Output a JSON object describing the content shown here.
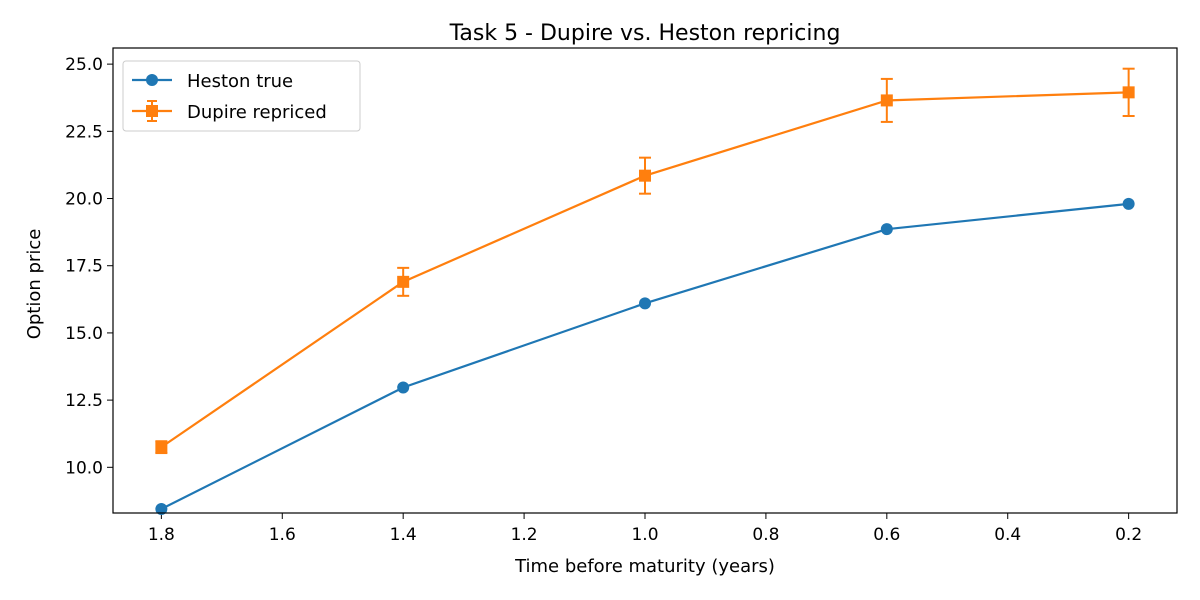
{
  "chart_data": {
    "type": "line",
    "title": "Task 5 - Dupire vs. Heston repricing",
    "xlabel": "Time before maturity (years)",
    "ylabel": "Option price",
    "x_reversed": true,
    "xlim": [
      1.88,
      0.12
    ],
    "ylim": [
      8.3,
      25.6
    ],
    "x_ticks": [
      1.8,
      1.6,
      1.4,
      1.2,
      1.0,
      0.8,
      0.6,
      0.4,
      0.2
    ],
    "x_tick_labels": [
      "1.8",
      "1.6",
      "1.4",
      "1.2",
      "1.0",
      "0.8",
      "0.6",
      "0.4",
      "0.2"
    ],
    "y_ticks": [
      10.0,
      12.5,
      15.0,
      17.5,
      20.0,
      22.5,
      25.0
    ],
    "y_tick_labels": [
      "10.0",
      "12.5",
      "15.0",
      "17.5",
      "20.0",
      "22.5",
      "25.0"
    ],
    "grid": false,
    "legend_position": "top-left",
    "series": [
      {
        "name": "Heston true",
        "color": "#1f77b4",
        "marker": "circle",
        "x": [
          1.8,
          1.4,
          1.0,
          0.6,
          0.2
        ],
        "y": [
          8.45,
          12.97,
          16.1,
          18.86,
          19.8
        ]
      },
      {
        "name": "Dupire repriced",
        "color": "#ff7f0e",
        "marker": "square",
        "x": [
          1.8,
          1.4,
          1.0,
          0.6,
          0.2
        ],
        "y": [
          10.75,
          16.9,
          20.85,
          23.65,
          23.95
        ],
        "yerr": [
          0.22,
          0.52,
          0.67,
          0.8,
          0.88
        ]
      }
    ]
  }
}
